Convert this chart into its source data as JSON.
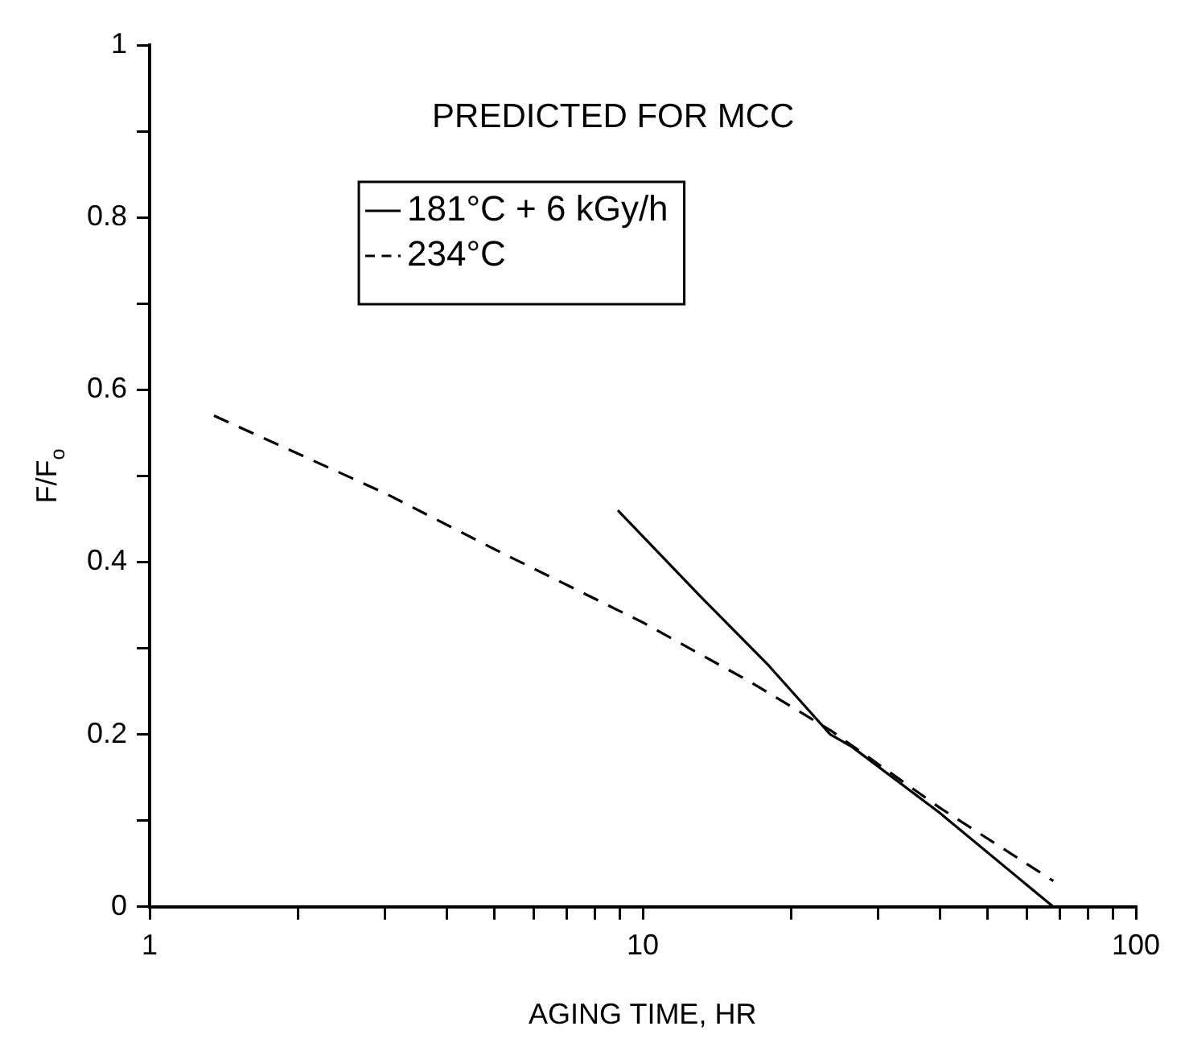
{
  "chart_data": {
    "type": "line",
    "xlabel": "AGING TIME, HR",
    "ylabel": "F/F$_{o}$",
    "log": "x",
    "grid": false,
    "legend": "top",
    "marker": "none",
    "annotations": [
      "PREDICTED FOR MCC"
    ],
    "xlim": [
      1,
      100
    ],
    "xticks": [
      1,
      {
        "value": 2,
        "label": null
      },
      {
        "value": 3,
        "label": null
      },
      {
        "value": 4,
        "label": null
      },
      {
        "value": 5,
        "label": null
      },
      {
        "value": 6,
        "label": null
      },
      {
        "value": 7,
        "label": null
      },
      {
        "value": 8,
        "label": null
      },
      {
        "value": 9,
        "label": null
      },
      10,
      {
        "value": 20,
        "label": null
      },
      {
        "value": 30,
        "label": null
      },
      {
        "value": 40,
        "label": null
      },
      {
        "value": 50,
        "label": null
      },
      {
        "value": 60,
        "label": null
      },
      {
        "value": 70,
        "label": null
      },
      {
        "value": 80,
        "label": null
      },
      {
        "value": 90,
        "label": null
      },
      100
    ],
    "ylim": [
      0,
      1
    ],
    "yticks": [
      0,
      {
        "value": 0.1,
        "label": null
      },
      0.2,
      {
        "value": 0.3,
        "label": null
      },
      0.4,
      {
        "value": 0.5,
        "label": null
      },
      0.6,
      {
        "value": 0.7,
        "label": null
      },
      0.8,
      {
        "value": 0.9,
        "label": null
      },
      1
    ],
    "series": [
      {
        "name": "181°C + 6 kGy/h",
        "color": "#000000",
        "line_style": "solid",
        "x": [
          8.9,
          13.1,
          18,
          24,
          26.5,
          40,
          68
        ],
        "values": [
          0.46,
          0.36,
          0.28,
          0.2,
          0.186,
          0.109,
          0
        ]
      },
      {
        "name": "234°C",
        "color": "#000000",
        "line_style": "dashed",
        "x": [
          1.35,
          3,
          5,
          10,
          16.4,
          24,
          40,
          68
        ],
        "values": [
          0.57,
          0.48,
          0.415,
          0.33,
          0.262,
          0.205,
          0.115,
          0.03
        ]
      }
    ]
  }
}
